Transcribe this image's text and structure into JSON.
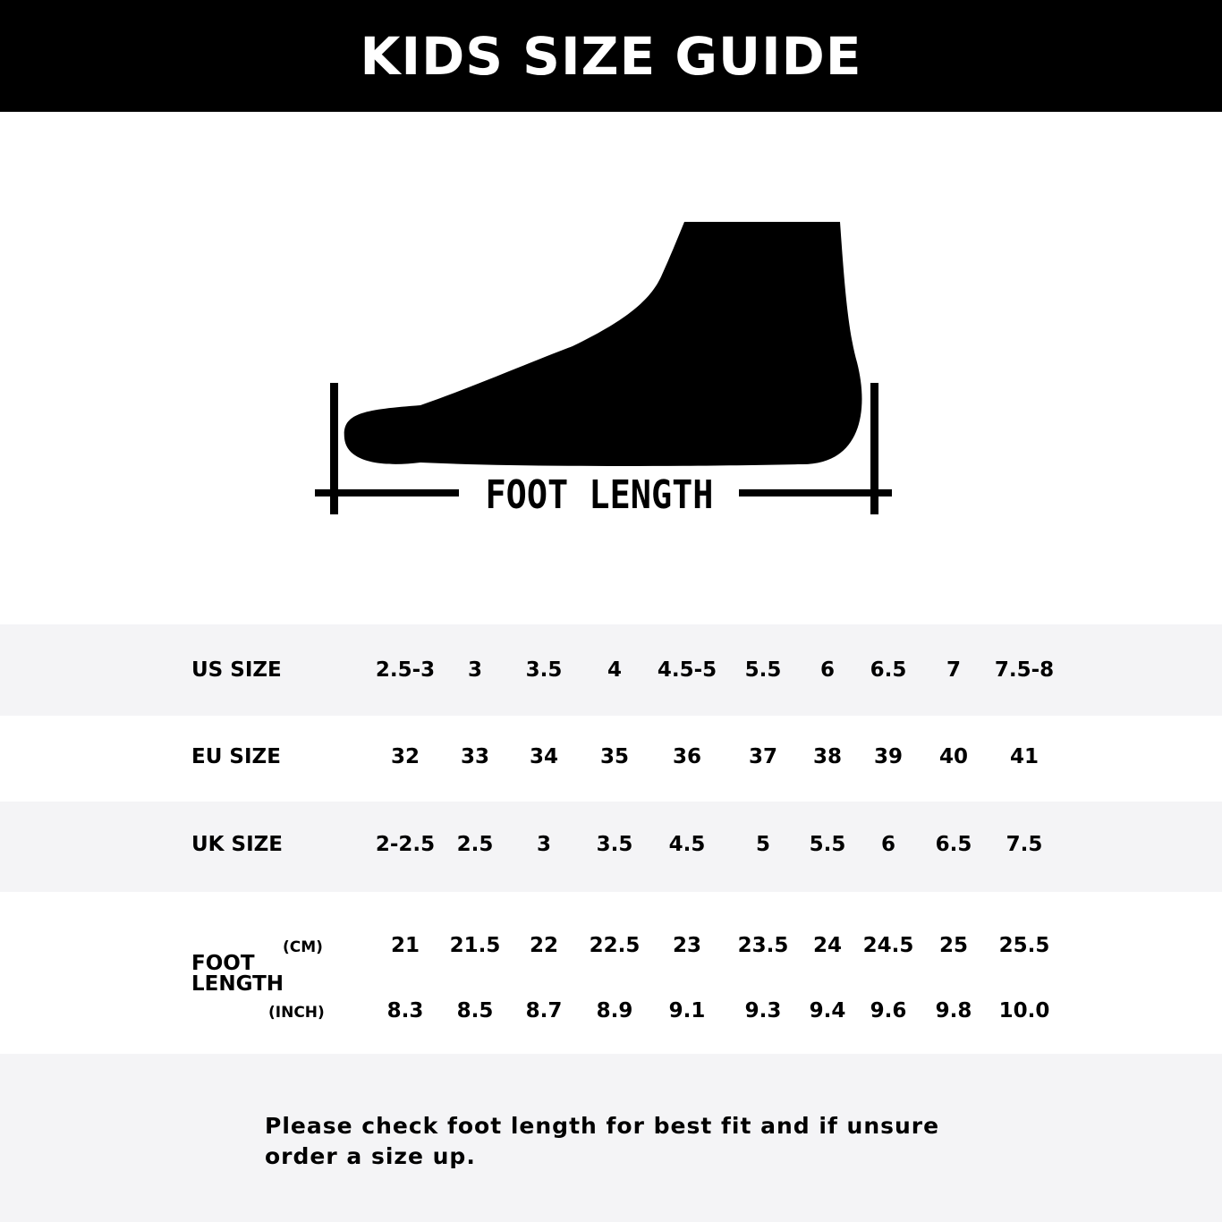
{
  "title": "KIDS SIZE GUIDE",
  "diagram": {
    "label": "FOOT LENGTH"
  },
  "table": {
    "rows": [
      {
        "label": "US SIZE",
        "values": [
          "2.5-3",
          "3",
          "3.5",
          "4",
          "4.5-5",
          "5.5",
          "6",
          "6.5",
          "7",
          "7.5-8"
        ]
      },
      {
        "label": "EU SIZE",
        "values": [
          "32",
          "33",
          "34",
          "35",
          "36",
          "37",
          "38",
          "39",
          "40",
          "41"
        ]
      },
      {
        "label": "UK SIZE",
        "values": [
          "2-2.5",
          "2.5",
          "3",
          "3.5",
          "4.5",
          "5",
          "5.5",
          "6",
          "6.5",
          "7.5"
        ]
      }
    ],
    "foot_length": {
      "label_line1": "FOOT",
      "label_line2": "LENGTH",
      "cm_label": "(CM)",
      "inch_label": "(INCH)",
      "cm": [
        "21",
        "21.5",
        "22",
        "22.5",
        "23",
        "23.5",
        "24",
        "24.5",
        "25",
        "25.5"
      ],
      "inch": [
        "8.3",
        "8.5",
        "8.7",
        "8.9",
        "9.1",
        "9.3",
        "9.4",
        "9.6",
        "9.8",
        "10.0"
      ]
    }
  },
  "note": {
    "line1": "Please check foot length for best fit and if unsure",
    "line2": "order a size up."
  }
}
